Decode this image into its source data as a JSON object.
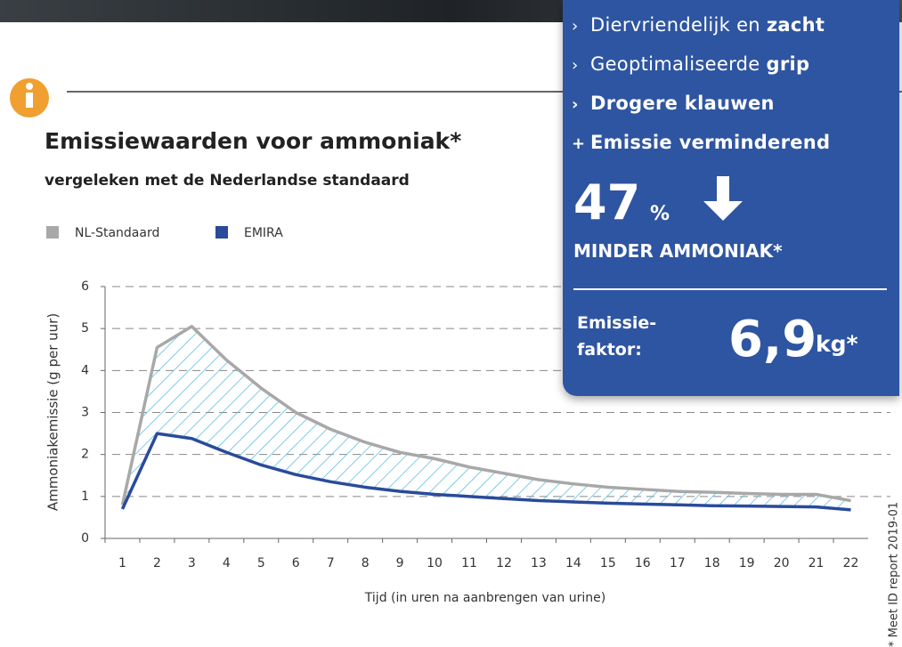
{
  "chart_data": {
    "type": "line",
    "title": "Emissiewaarden voor ammoniak*",
    "subtitle": "vergeleken met de Nederlandse standaard",
    "xlabel": "Tijd (in uren na aanbrengen van urine)",
    "ylabel": "Ammoniakemissie (g per uur)",
    "categories": [
      "1",
      "2",
      "3",
      "4",
      "5",
      "6",
      "7",
      "8",
      "9",
      "10",
      "11",
      "12",
      "13",
      "14",
      "15",
      "16",
      "17",
      "18",
      "19",
      "20",
      "21",
      "22"
    ],
    "series": [
      {
        "name": "NL-Standaard",
        "color": "#a8a8a8",
        "values": [
          0.8,
          4.55,
          5.05,
          4.25,
          3.58,
          3.0,
          2.6,
          2.29,
          2.05,
          1.9,
          1.7,
          1.55,
          1.4,
          1.3,
          1.22,
          1.17,
          1.12,
          1.1,
          1.07,
          1.05,
          1.05,
          0.9
        ]
      },
      {
        "name": "EMIRA",
        "color": "#2a4b9b",
        "values": [
          0.7,
          2.5,
          2.38,
          2.05,
          1.75,
          1.52,
          1.35,
          1.22,
          1.12,
          1.05,
          1.0,
          0.95,
          0.9,
          0.87,
          0.84,
          0.82,
          0.8,
          0.78,
          0.77,
          0.76,
          0.75,
          0.68
        ]
      }
    ],
    "ylim": [
      0,
      6
    ],
    "yticks": [
      0,
      1,
      2,
      3,
      4,
      5,
      6
    ],
    "grid": true,
    "fill_between": true,
    "hatch_color": "#5cc0e0"
  },
  "footnote": "* Meet ID report 2019-01",
  "panel": {
    "features": [
      {
        "marker": "›",
        "text": "Diervriendelijk en ",
        "bold": "zacht"
      },
      {
        "marker": "›",
        "text": "Geoptimaliseerde ",
        "bold": "grip"
      },
      {
        "marker": "›",
        "bold": "Drogere klauwen"
      },
      {
        "marker": "+",
        "bold": "Emissie verminderend"
      }
    ],
    "reduction": 47,
    "reduction_unit": "%",
    "reduction_label": "MINDER AMMONIAK*",
    "factor_label_1": "Emissie-",
    "factor_label_2": "faktor:",
    "factor_value": "6,9",
    "factor_unit": "kg*"
  }
}
